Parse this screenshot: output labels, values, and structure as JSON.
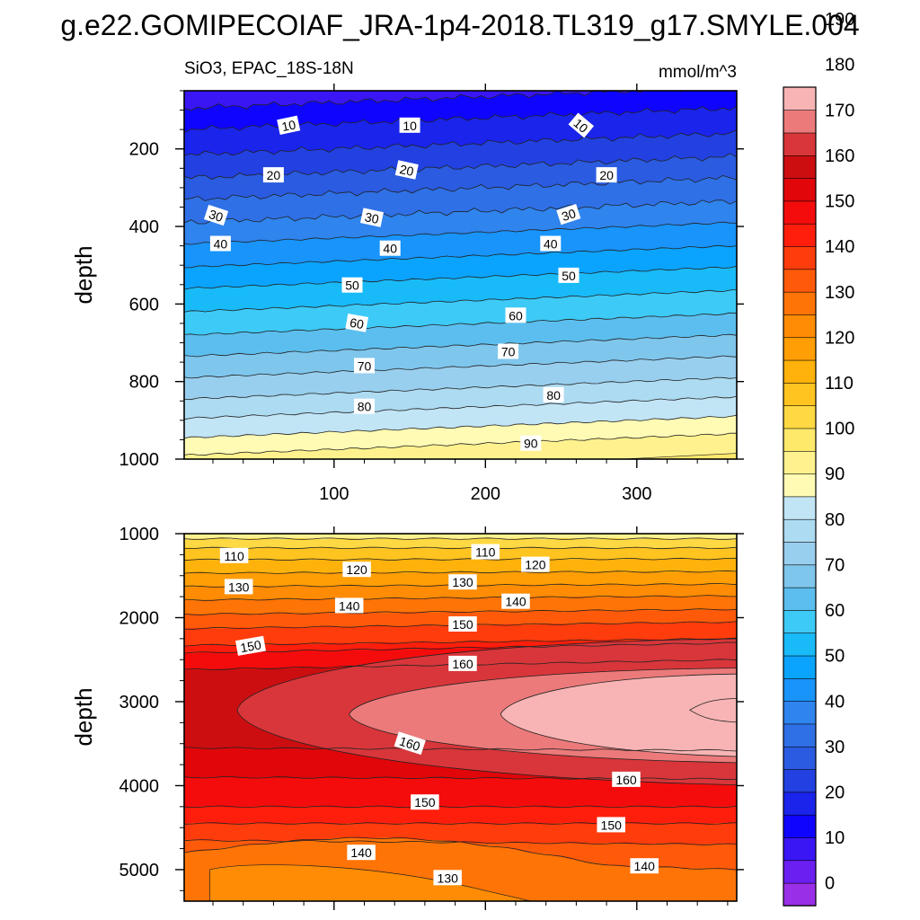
{
  "figure": {
    "title": "g.e22.GOMIPECOIAF_JRA-1p4-2018.TL319_g17.SMYLE.004",
    "subtitle_left": "SiO3, EPAC_18S-18N",
    "subtitle_right": "mmol/m^3"
  },
  "chart_data": [
    {
      "type": "heatmap",
      "panel": "upper",
      "ylabel": "depth",
      "xlabel": "",
      "xlim": [
        1,
        366
      ],
      "ylim": [
        1000,
        50
      ],
      "y_inverted": true,
      "xticks": [
        100,
        200,
        300
      ],
      "yticks": [
        200,
        400,
        600,
        800,
        1000
      ],
      "contour_interval": 5,
      "contour_levels_top_to_bottom": [
        {
          "depth_at_x1": 95,
          "value": 10
        },
        {
          "depth_at_x1": 150,
          "value": 15
        },
        {
          "depth_at_x1": 215,
          "value": 20
        },
        {
          "depth_at_x1": 275,
          "value": 25
        },
        {
          "depth_at_x1": 330,
          "value": 30
        },
        {
          "depth_at_x1": 390,
          "value": 35
        },
        {
          "depth_at_x1": 445,
          "value": 40
        },
        {
          "depth_at_x1": 505,
          "value": 45
        },
        {
          "depth_at_x1": 560,
          "value": 50
        },
        {
          "depth_at_x1": 620,
          "value": 55
        },
        {
          "depth_at_x1": 680,
          "value": 60
        },
        {
          "depth_at_x1": 735,
          "value": 65
        },
        {
          "depth_at_x1": 790,
          "value": 70
        },
        {
          "depth_at_x1": 845,
          "value": 75
        },
        {
          "depth_at_x1": 895,
          "value": 80
        },
        {
          "depth_at_x1": 945,
          "value": 85
        },
        {
          "depth_at_x1": 990,
          "value": 90
        }
      ],
      "contour_labels": [
        {
          "text": "10",
          "x": 70,
          "depth": 140,
          "rot": -12
        },
        {
          "text": "10",
          "x": 150,
          "depth": 140,
          "rot": 0
        },
        {
          "text": "10",
          "x": 263,
          "depth": 140,
          "rot": 40
        },
        {
          "text": "20",
          "x": 60,
          "depth": 268,
          "rot": 0
        },
        {
          "text": "20",
          "x": 148,
          "depth": 255,
          "rot": 12
        },
        {
          "text": "20",
          "x": 280,
          "depth": 268,
          "rot": 0
        },
        {
          "text": "30",
          "x": 22,
          "depth": 372,
          "rot": 18
        },
        {
          "text": "30",
          "x": 125,
          "depth": 378,
          "rot": 12
        },
        {
          "text": "30",
          "x": 255,
          "depth": 370,
          "rot": -18
        },
        {
          "text": "40",
          "x": 25,
          "depth": 445,
          "rot": 0
        },
        {
          "text": "40",
          "x": 137,
          "depth": 457,
          "rot": 0
        },
        {
          "text": "40",
          "x": 243,
          "depth": 445,
          "rot": 0
        },
        {
          "text": "50",
          "x": 112,
          "depth": 552,
          "rot": 0
        },
        {
          "text": "50",
          "x": 255,
          "depth": 527,
          "rot": 0
        },
        {
          "text": "60",
          "x": 115,
          "depth": 650,
          "rot": 10
        },
        {
          "text": "60",
          "x": 220,
          "depth": 630,
          "rot": 0
        },
        {
          "text": "70",
          "x": 120,
          "depth": 760,
          "rot": 0
        },
        {
          "text": "70",
          "x": 215,
          "depth": 723,
          "rot": 0
        },
        {
          "text": "80",
          "x": 120,
          "depth": 865,
          "rot": 0
        },
        {
          "text": "80",
          "x": 245,
          "depth": 835,
          "rot": 0
        },
        {
          "text": "90",
          "x": 230,
          "depth": 960,
          "rot": 0
        }
      ]
    },
    {
      "type": "heatmap",
      "panel": "lower",
      "ylabel": "depth",
      "xlabel": "",
      "xlim": [
        1,
        366
      ],
      "ylim": [
        5375,
        1000
      ],
      "y_inverted": true,
      "xticks": [
        100,
        200,
        300
      ],
      "yticks": [
        1000,
        2000,
        3000,
        4000,
        5000
      ],
      "contour_interval": 5,
      "contour_levels_upper": [
        {
          "depth_x1": 1060,
          "depth_x366": 1060,
          "value": 95
        },
        {
          "depth_x1": 1170,
          "depth_x366": 1170,
          "value": 105
        },
        {
          "depth_x1": 1310,
          "depth_x366": 1300,
          "value": 110
        },
        {
          "depth_x1": 1470,
          "depth_x366": 1450,
          "value": 115
        },
        {
          "depth_x1": 1630,
          "depth_x366": 1600,
          "value": 120
        },
        {
          "depth_x1": 1790,
          "depth_x366": 1740,
          "value": 125
        },
        {
          "depth_x1": 1960,
          "depth_x366": 1900,
          "value": 130
        },
        {
          "depth_x1": 2130,
          "depth_x366": 2050,
          "value": 135
        },
        {
          "depth_x1": 2330,
          "depth_x366": 2250,
          "value": 140
        },
        {
          "depth_x1": 2420,
          "depth_x366": 2300,
          "value": 145
        },
        {
          "depth_x1": 2620,
          "depth_x366": 2500,
          "value": 150
        }
      ],
      "contour_levels_lower": [
        {
          "depth_x1": 3550,
          "depth_x366": 3580,
          "value": 155
        },
        {
          "depth_x1": 3900,
          "depth_x366": 3920,
          "value": 150
        },
        {
          "depth_x1": 4250,
          "depth_x366": 4250,
          "value": 145
        },
        {
          "depth_x1": 4450,
          "depth_x366": 4450,
          "value": 140
        },
        {
          "depth_x1": 4650,
          "depth_x366": 4700,
          "value": 135
        },
        {
          "depth_x1": 4800,
          "depth_x366": 5000,
          "value": 130
        }
      ],
      "closed_regions": [
        {
          "value": 160,
          "nose_x": 36,
          "depth_center": 3100,
          "half_height_at_right": 850
        },
        {
          "value": 165,
          "nose_x": 110,
          "depth_center": 3150,
          "half_height_at_right": 550
        },
        {
          "value": 170,
          "nose_x": 210,
          "depth_center": 3150,
          "half_height_at_right": 480
        },
        {
          "value": 175,
          "nose_x": 335,
          "depth_center": 3100,
          "half_height_at_right": 140
        }
      ],
      "contour_labels": [
        {
          "text": "110",
          "x": 34,
          "depth": 1265,
          "rot": 0
        },
        {
          "text": "110",
          "x": 200,
          "depth": 1220,
          "rot": 0
        },
        {
          "text": "120",
          "x": 115,
          "depth": 1430,
          "rot": 0
        },
        {
          "text": "120",
          "x": 233,
          "depth": 1370,
          "rot": 0
        },
        {
          "text": "130",
          "x": 37,
          "depth": 1635,
          "rot": 0
        },
        {
          "text": "130",
          "x": 185,
          "depth": 1580,
          "rot": 0
        },
        {
          "text": "140",
          "x": 110,
          "depth": 1860,
          "rot": 0
        },
        {
          "text": "140",
          "x": 220,
          "depth": 1810,
          "rot": 0
        },
        {
          "text": "150",
          "x": 185,
          "depth": 2080,
          "rot": 0
        },
        {
          "text": "150",
          "x": 45,
          "depth": 2340,
          "rot": -10
        },
        {
          "text": "160",
          "x": 185,
          "depth": 2550,
          "rot": 0
        },
        {
          "text": "160",
          "x": 150,
          "depth": 3500,
          "rot": 18
        },
        {
          "text": "160",
          "x": 293,
          "depth": 3930,
          "rot": 0
        },
        {
          "text": "150",
          "x": 160,
          "depth": 4200,
          "rot": 0
        },
        {
          "text": "150",
          "x": 283,
          "depth": 4470,
          "rot": 0
        },
        {
          "text": "140",
          "x": 118,
          "depth": 4800,
          "rot": 0
        },
        {
          "text": "140",
          "x": 305,
          "depth": 4960,
          "rot": 0
        },
        {
          "text": "130",
          "x": 175,
          "depth": 5100,
          "rot": 0
        }
      ]
    }
  ],
  "colorbar": {
    "labels": [
      "0",
      "10",
      "20",
      "30",
      "40",
      "50",
      "60",
      "70",
      "80",
      "90",
      "100",
      "110",
      "120",
      "130",
      "140",
      "150",
      "160",
      "170",
      "180",
      "190"
    ],
    "bin_width": 5,
    "colors": [
      "#9a2fe8",
      "#6b1ff0",
      "#3a16f5",
      "#0f05ff",
      "#1a24ea",
      "#2241e0",
      "#2a5be0",
      "#2f70e6",
      "#2f84ee",
      "#1894fb",
      "#0aa4ff",
      "#19baf8",
      "#3dcaf6",
      "#5cbeee",
      "#7fc6ed",
      "#99cfee",
      "#addbf1",
      "#c2e5f6",
      "#fffbb5",
      "#fff28e",
      "#ffe96b",
      "#ffd943",
      "#ffc420",
      "#ffb20b",
      "#ff9e05",
      "#ff8c04",
      "#ff7406",
      "#ff5a0a",
      "#ff3c0c",
      "#ff1e0c",
      "#f40c0c",
      "#e0060a",
      "#cc0e10",
      "#d8363a",
      "#ec7a7a",
      "#f8b4b4"
    ]
  }
}
